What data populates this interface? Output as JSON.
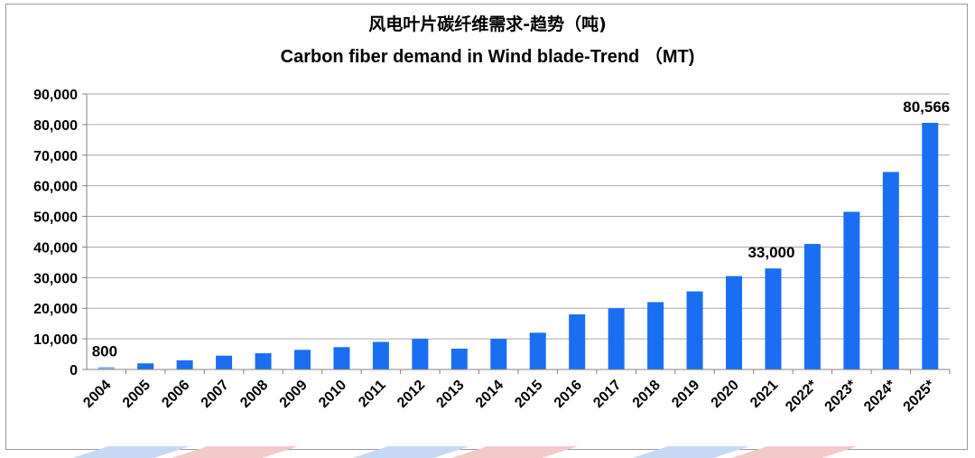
{
  "chart_data": {
    "type": "bar",
    "title": "风电叶片碳纤维需求-趋势（吨)",
    "subtitle": "Carbon fiber demand in Wind blade-Trend （MT)",
    "xlabel": "",
    "ylabel": "",
    "categories": [
      "2004",
      "2005",
      "2006",
      "2007",
      "2008",
      "2009",
      "2010",
      "2011",
      "2012",
      "2013",
      "2014",
      "2015",
      "2016",
      "2017",
      "2018",
      "2019",
      "2020",
      "2021",
      "2022*",
      "2023*",
      "2024*",
      "2025*"
    ],
    "values": [
      800,
      2000,
      3000,
      4500,
      5300,
      6400,
      7300,
      9000,
      10000,
      6800,
      10000,
      12000,
      18000,
      20000,
      22000,
      25500,
      30500,
      33000,
      41000,
      51500,
      64500,
      80566
    ],
    "ylim": [
      0,
      90000
    ],
    "yticks": [
      "0",
      "10,000",
      "20,000",
      "30,000",
      "40,000",
      "50,000",
      "60,000",
      "70,000",
      "80,000",
      "90,000"
    ],
    "data_labels": [
      {
        "category": "2004",
        "text": "800"
      },
      {
        "category": "2021",
        "text": "33,000"
      },
      {
        "category": "2025*",
        "text": "80,566"
      }
    ],
    "grid": true,
    "legend": "none",
    "colors": {
      "bar": "#1a6ef2",
      "bar_first": "#8ab4f0",
      "grid": "#a6a6a6",
      "axis": "#808080"
    }
  }
}
